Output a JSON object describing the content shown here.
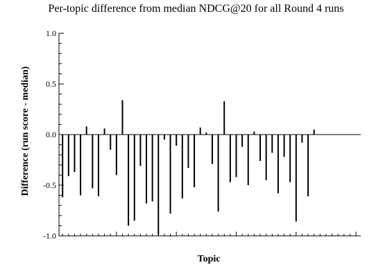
{
  "chart_data": {
    "type": "bar",
    "title": "Per-topic difference from median NDCG@20 for all Round 4 runs",
    "xlabel": "Topic",
    "ylabel": "Difference (run score - median)",
    "ylim": [
      -1.0,
      1.0
    ],
    "yticks": [
      "1.0",
      "0.5",
      "0.0",
      "-0.5",
      "-1.0"
    ],
    "yticks_values": [
      1.0,
      0.5,
      0.0,
      -0.5,
      -1.0
    ],
    "grid": false,
    "legend": "none",
    "bar_color": "#000000",
    "x": [
      1,
      2,
      3,
      4,
      5,
      6,
      7,
      8,
      9,
      10,
      11,
      12,
      13,
      14,
      15,
      16,
      17,
      18,
      19,
      20,
      21,
      22,
      23,
      24,
      25,
      26,
      27,
      28,
      29,
      30,
      31,
      32,
      33,
      34,
      35,
      36,
      37,
      38,
      39,
      40,
      41,
      42,
      43,
      44,
      45,
      46,
      47,
      48,
      49,
      50
    ],
    "values": [
      -0.62,
      -0.41,
      -0.37,
      -0.6,
      0.08,
      -0.53,
      -0.61,
      0.06,
      -0.15,
      -0.4,
      0.34,
      -0.9,
      -0.85,
      -0.31,
      -0.68,
      -0.66,
      -0.99,
      -0.05,
      -0.78,
      -0.11,
      -0.63,
      -0.33,
      -0.52,
      0.07,
      0.02,
      -0.29,
      -0.76,
      0.33,
      -0.47,
      -0.42,
      -0.12,
      -0.5,
      0.03,
      -0.26,
      -0.45,
      -0.18,
      -0.58,
      -0.22,
      -0.47,
      -0.86,
      -0.08,
      -0.61,
      0.05,
      0.0,
      0.0,
      0.0,
      0.0,
      0.0,
      0.0,
      0.0
    ]
  }
}
